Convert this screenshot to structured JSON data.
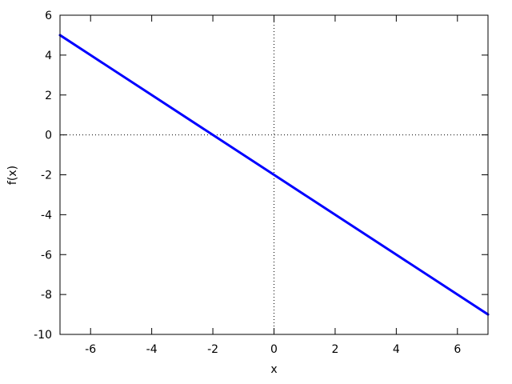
{
  "figure": {
    "background": "#ffffff",
    "border_color": "#000000",
    "text_color": "#000000"
  },
  "chart_data": {
    "type": "line",
    "title": "",
    "xlabel": "x",
    "ylabel": "f(x)",
    "xlim": [
      -7,
      7
    ],
    "ylim": [
      -10,
      6
    ],
    "xticks": [
      -6,
      -4,
      -2,
      0,
      2,
      4,
      6
    ],
    "yticks": [
      -10,
      -8,
      -6,
      -4,
      -2,
      0,
      2,
      4,
      6
    ],
    "grid": false,
    "zeroaxis_dotted": true,
    "legend": "none",
    "tick_style": "inward-all-borders",
    "series": [
      {
        "name": "f(x)",
        "color": "#0000ff",
        "line_width": 3,
        "points": [
          [
            -7,
            5
          ],
          [
            -6,
            4
          ],
          [
            -4,
            2
          ],
          [
            -2,
            0
          ],
          [
            0,
            -2
          ],
          [
            2,
            -4
          ],
          [
            4,
            -6
          ],
          [
            6,
            -8
          ],
          [
            7,
            -9
          ]
        ]
      }
    ]
  }
}
